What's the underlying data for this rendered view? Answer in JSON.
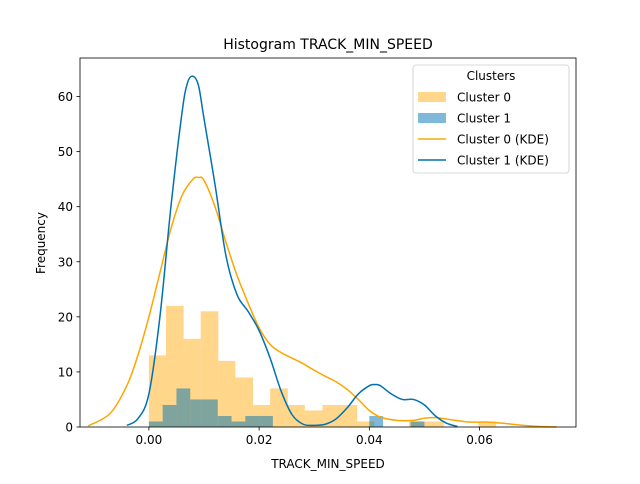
{
  "chart_data": {
    "type": "histogram",
    "title": "Histogram TRACK_MIN_SPEED",
    "xlabel": "TRACK_MIN_SPEED",
    "ylabel": "Frequency",
    "xlim": [
      -0.0125,
      0.0775
    ],
    "ylim": [
      0,
      67
    ],
    "xticks": [
      0.0,
      0.02,
      0.04,
      0.06
    ],
    "xtick_labels": [
      "0.00",
      "0.02",
      "0.04",
      "0.06"
    ],
    "yticks": [
      0,
      10,
      20,
      30,
      40,
      50,
      60
    ],
    "ytick_labels": [
      "0",
      "10",
      "20",
      "30",
      "40",
      "50",
      "60"
    ],
    "grid": false,
    "legend": {
      "title": "Clusters",
      "position": "top-right",
      "entries": [
        {
          "label": "Cluster 0",
          "kind": "bar",
          "color": "#ffc04c",
          "opacity": 0.65
        },
        {
          "label": "Cluster 1",
          "kind": "bar",
          "color": "#0072b2",
          "opacity": 0.5
        },
        {
          "label": "Cluster 0 (KDE)",
          "kind": "line",
          "color": "#ffa500"
        },
        {
          "label": "Cluster 1 (KDE)",
          "kind": "line",
          "color": "#0072b2"
        }
      ]
    },
    "series": [
      {
        "name": "Cluster 0",
        "kind": "histogram",
        "color": "#ffc04c",
        "bin_edges": [
          0.0,
          0.0031,
          0.0063,
          0.0094,
          0.0126,
          0.0157,
          0.0189,
          0.022,
          0.0252,
          0.0283,
          0.0315,
          0.0346,
          0.0378,
          0.0409,
          0.0441,
          0.0472,
          0.0504,
          0.0535,
          0.0567,
          0.0598,
          0.063
        ],
        "counts": [
          13,
          22,
          16,
          21,
          12,
          9,
          4,
          7,
          4,
          3,
          4,
          4,
          1,
          0,
          0,
          1,
          1,
          0,
          0,
          1
        ]
      },
      {
        "name": "Cluster 1",
        "kind": "histogram",
        "color": "#0072b2",
        "bin_edges": [
          0.0,
          0.0025,
          0.005,
          0.0075,
          0.01,
          0.0125,
          0.015,
          0.0175,
          0.02,
          0.0225,
          0.025,
          0.0275,
          0.03,
          0.0325,
          0.035,
          0.0375,
          0.04,
          0.0425,
          0.045,
          0.0475,
          0.05
        ],
        "counts": [
          1,
          4,
          7,
          5,
          5,
          2,
          1,
          2,
          2,
          0,
          0,
          0,
          0,
          0,
          0,
          0,
          2,
          0,
          0,
          1
        ]
      },
      {
        "name": "Cluster 0 (KDE)",
        "kind": "line",
        "color": "#ffa500",
        "x": [
          -0.011,
          -0.007,
          -0.004,
          -0.002,
          0.0,
          0.002,
          0.004,
          0.006,
          0.008,
          0.009,
          0.01,
          0.012,
          0.014,
          0.016,
          0.018,
          0.02,
          0.022,
          0.024,
          0.026,
          0.028,
          0.03,
          0.032,
          0.034,
          0.036,
          0.038,
          0.04,
          0.042,
          0.045,
          0.048,
          0.05,
          0.052,
          0.055,
          0.058,
          0.061,
          0.064,
          0.068,
          0.071,
          0.074
        ],
        "y": [
          0.2,
          2.5,
          7.5,
          13,
          20,
          28,
          36,
          42,
          45,
          45.3,
          44.8,
          40,
          33.5,
          27.5,
          22.5,
          18,
          15,
          13.5,
          12.5,
          11.5,
          10.3,
          9.2,
          8.2,
          6.8,
          5,
          3,
          1.8,
          1.2,
          1.2,
          1.6,
          1.7,
          1.3,
          0.9,
          0.9,
          0.7,
          0.3,
          0.1,
          0.0
        ]
      },
      {
        "name": "Cluster 1 (KDE)",
        "kind": "line",
        "color": "#0072b2",
        "x": [
          -0.004,
          -0.002,
          0.0,
          0.002,
          0.004,
          0.006,
          0.007,
          0.008,
          0.009,
          0.01,
          0.012,
          0.014,
          0.016,
          0.018,
          0.02,
          0.022,
          0.024,
          0.026,
          0.028,
          0.03,
          0.032,
          0.034,
          0.036,
          0.038,
          0.04,
          0.041,
          0.042,
          0.044,
          0.046,
          0.048,
          0.05,
          0.052,
          0.054,
          0.056
        ],
        "y": [
          0.3,
          1.5,
          6,
          20,
          40,
          57,
          62.5,
          63.7,
          62,
          56,
          44,
          31,
          24,
          21,
          17.5,
          12.5,
          6.5,
          2.2,
          0.5,
          0.3,
          0.5,
          1.5,
          3.5,
          6,
          7.5,
          7.7,
          7.5,
          6,
          5,
          5,
          4,
          2,
          0.7,
          0.1
        ]
      }
    ]
  }
}
